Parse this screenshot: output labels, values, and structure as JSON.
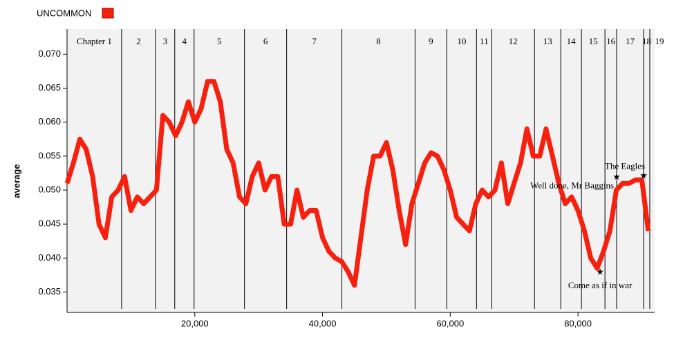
{
  "chart_data": {
    "type": "line",
    "y_label": "average",
    "series": [
      {
        "name": "UNCOMMON",
        "color": "#f7200e",
        "values": [
          0.051,
          0.054,
          0.0575,
          0.056,
          0.052,
          0.045,
          0.043,
          0.049,
          0.05,
          0.052,
          0.047,
          0.049,
          0.048,
          0.049,
          0.05,
          0.061,
          0.06,
          0.058,
          0.06,
          0.063,
          0.06,
          0.062,
          0.066,
          0.066,
          0.063,
          0.056,
          0.054,
          0.049,
          0.048,
          0.052,
          0.054,
          0.05,
          0.052,
          0.052,
          0.045,
          0.045,
          0.05,
          0.046,
          0.047,
          0.047,
          0.043,
          0.041,
          0.04,
          0.0395,
          0.038,
          0.036,
          0.043,
          0.05,
          0.055,
          0.055,
          0.057,
          0.053,
          0.047,
          0.042,
          0.048,
          0.051,
          0.054,
          0.0555,
          0.055,
          0.053,
          0.05,
          0.046,
          0.045,
          0.044,
          0.048,
          0.05,
          0.049,
          0.05,
          0.054,
          0.048,
          0.051,
          0.054,
          0.059,
          0.055,
          0.055,
          0.059,
          0.055,
          0.051,
          0.048,
          0.049,
          0.047,
          0.044,
          0.04,
          0.0385,
          0.041,
          0.044,
          0.05,
          0.051,
          0.051,
          0.0515,
          0.0515,
          0.044
        ]
      }
    ],
    "x": [
      0,
      1000,
      2000,
      3000,
      4000,
      5000,
      6000,
      7000,
      8000,
      9000,
      10000,
      11000,
      12000,
      13000,
      14000,
      15000,
      16000,
      17000,
      18000,
      19000,
      20000,
      21000,
      22000,
      23000,
      24000,
      25000,
      26000,
      27000,
      28000,
      29000,
      30000,
      31000,
      32000,
      33000,
      34000,
      35000,
      36000,
      37000,
      38000,
      39000,
      40000,
      41000,
      42000,
      43000,
      44000,
      45000,
      46000,
      47000,
      48000,
      49000,
      50000,
      51000,
      52000,
      53000,
      54000,
      55000,
      56000,
      57000,
      58000,
      59000,
      60000,
      61000,
      62000,
      63000,
      64000,
      65000,
      66000,
      67000,
      68000,
      69000,
      70000,
      71000,
      72000,
      73000,
      74000,
      75000,
      76000,
      77000,
      78000,
      79000,
      80000,
      81000,
      82000,
      83000,
      84000,
      85000,
      86000,
      87000,
      88000,
      89000,
      90000,
      91000
    ],
    "xlim": [
      0,
      92000
    ],
    "ylim": [
      0.032,
      0.0737
    ],
    "xticks": [
      {
        "value": 20000,
        "label": "20,000"
      },
      {
        "value": 40000,
        "label": "40,000"
      },
      {
        "value": 60000,
        "label": "60,000"
      },
      {
        "value": 80000,
        "label": "80,000"
      }
    ],
    "yticks": [
      0.035,
      {
        "value": 0.04,
        "label": "0.040"
      },
      0.045,
      {
        "value": 0.05,
        "label": "0.050"
      },
      0.055,
      {
        "value": 0.06,
        "label": "0.060"
      },
      0.065,
      {
        "value": 0.07,
        "label": "0.070"
      }
    ],
    "chapters": [
      {
        "label": "Chapter 1",
        "start": 0
      },
      {
        "label": "2",
        "start": 8540
      },
      {
        "label": "3",
        "start": 13840
      },
      {
        "label": "4",
        "start": 16860
      },
      {
        "label": "5",
        "start": 19890
      },
      {
        "label": "6",
        "start": 27780
      },
      {
        "label": "7",
        "start": 34380
      },
      {
        "label": "8",
        "start": 43030
      },
      {
        "label": "9",
        "start": 54490
      },
      {
        "label": "10",
        "start": 59460
      },
      {
        "label": "11",
        "start": 64110
      },
      {
        "label": "12",
        "start": 66490
      },
      {
        "label": "13",
        "start": 73190
      },
      {
        "label": "14",
        "start": 77300
      },
      {
        "label": "15",
        "start": 80540
      },
      {
        "label": "16",
        "start": 84220
      },
      {
        "label": "17",
        "start": 86050
      },
      {
        "label": "18",
        "start": 90270
      },
      {
        "label": "19",
        "start": 91240
      }
    ],
    "annotations": [
      {
        "text": "Come as if in war",
        "x": 83460,
        "y": 0.038
      },
      {
        "text": "Well done, Mr Baggins",
        "x": 86050,
        "y": 0.052
      },
      {
        "text": "The Eagles",
        "x": 90270,
        "y": 0.0522
      }
    ]
  }
}
